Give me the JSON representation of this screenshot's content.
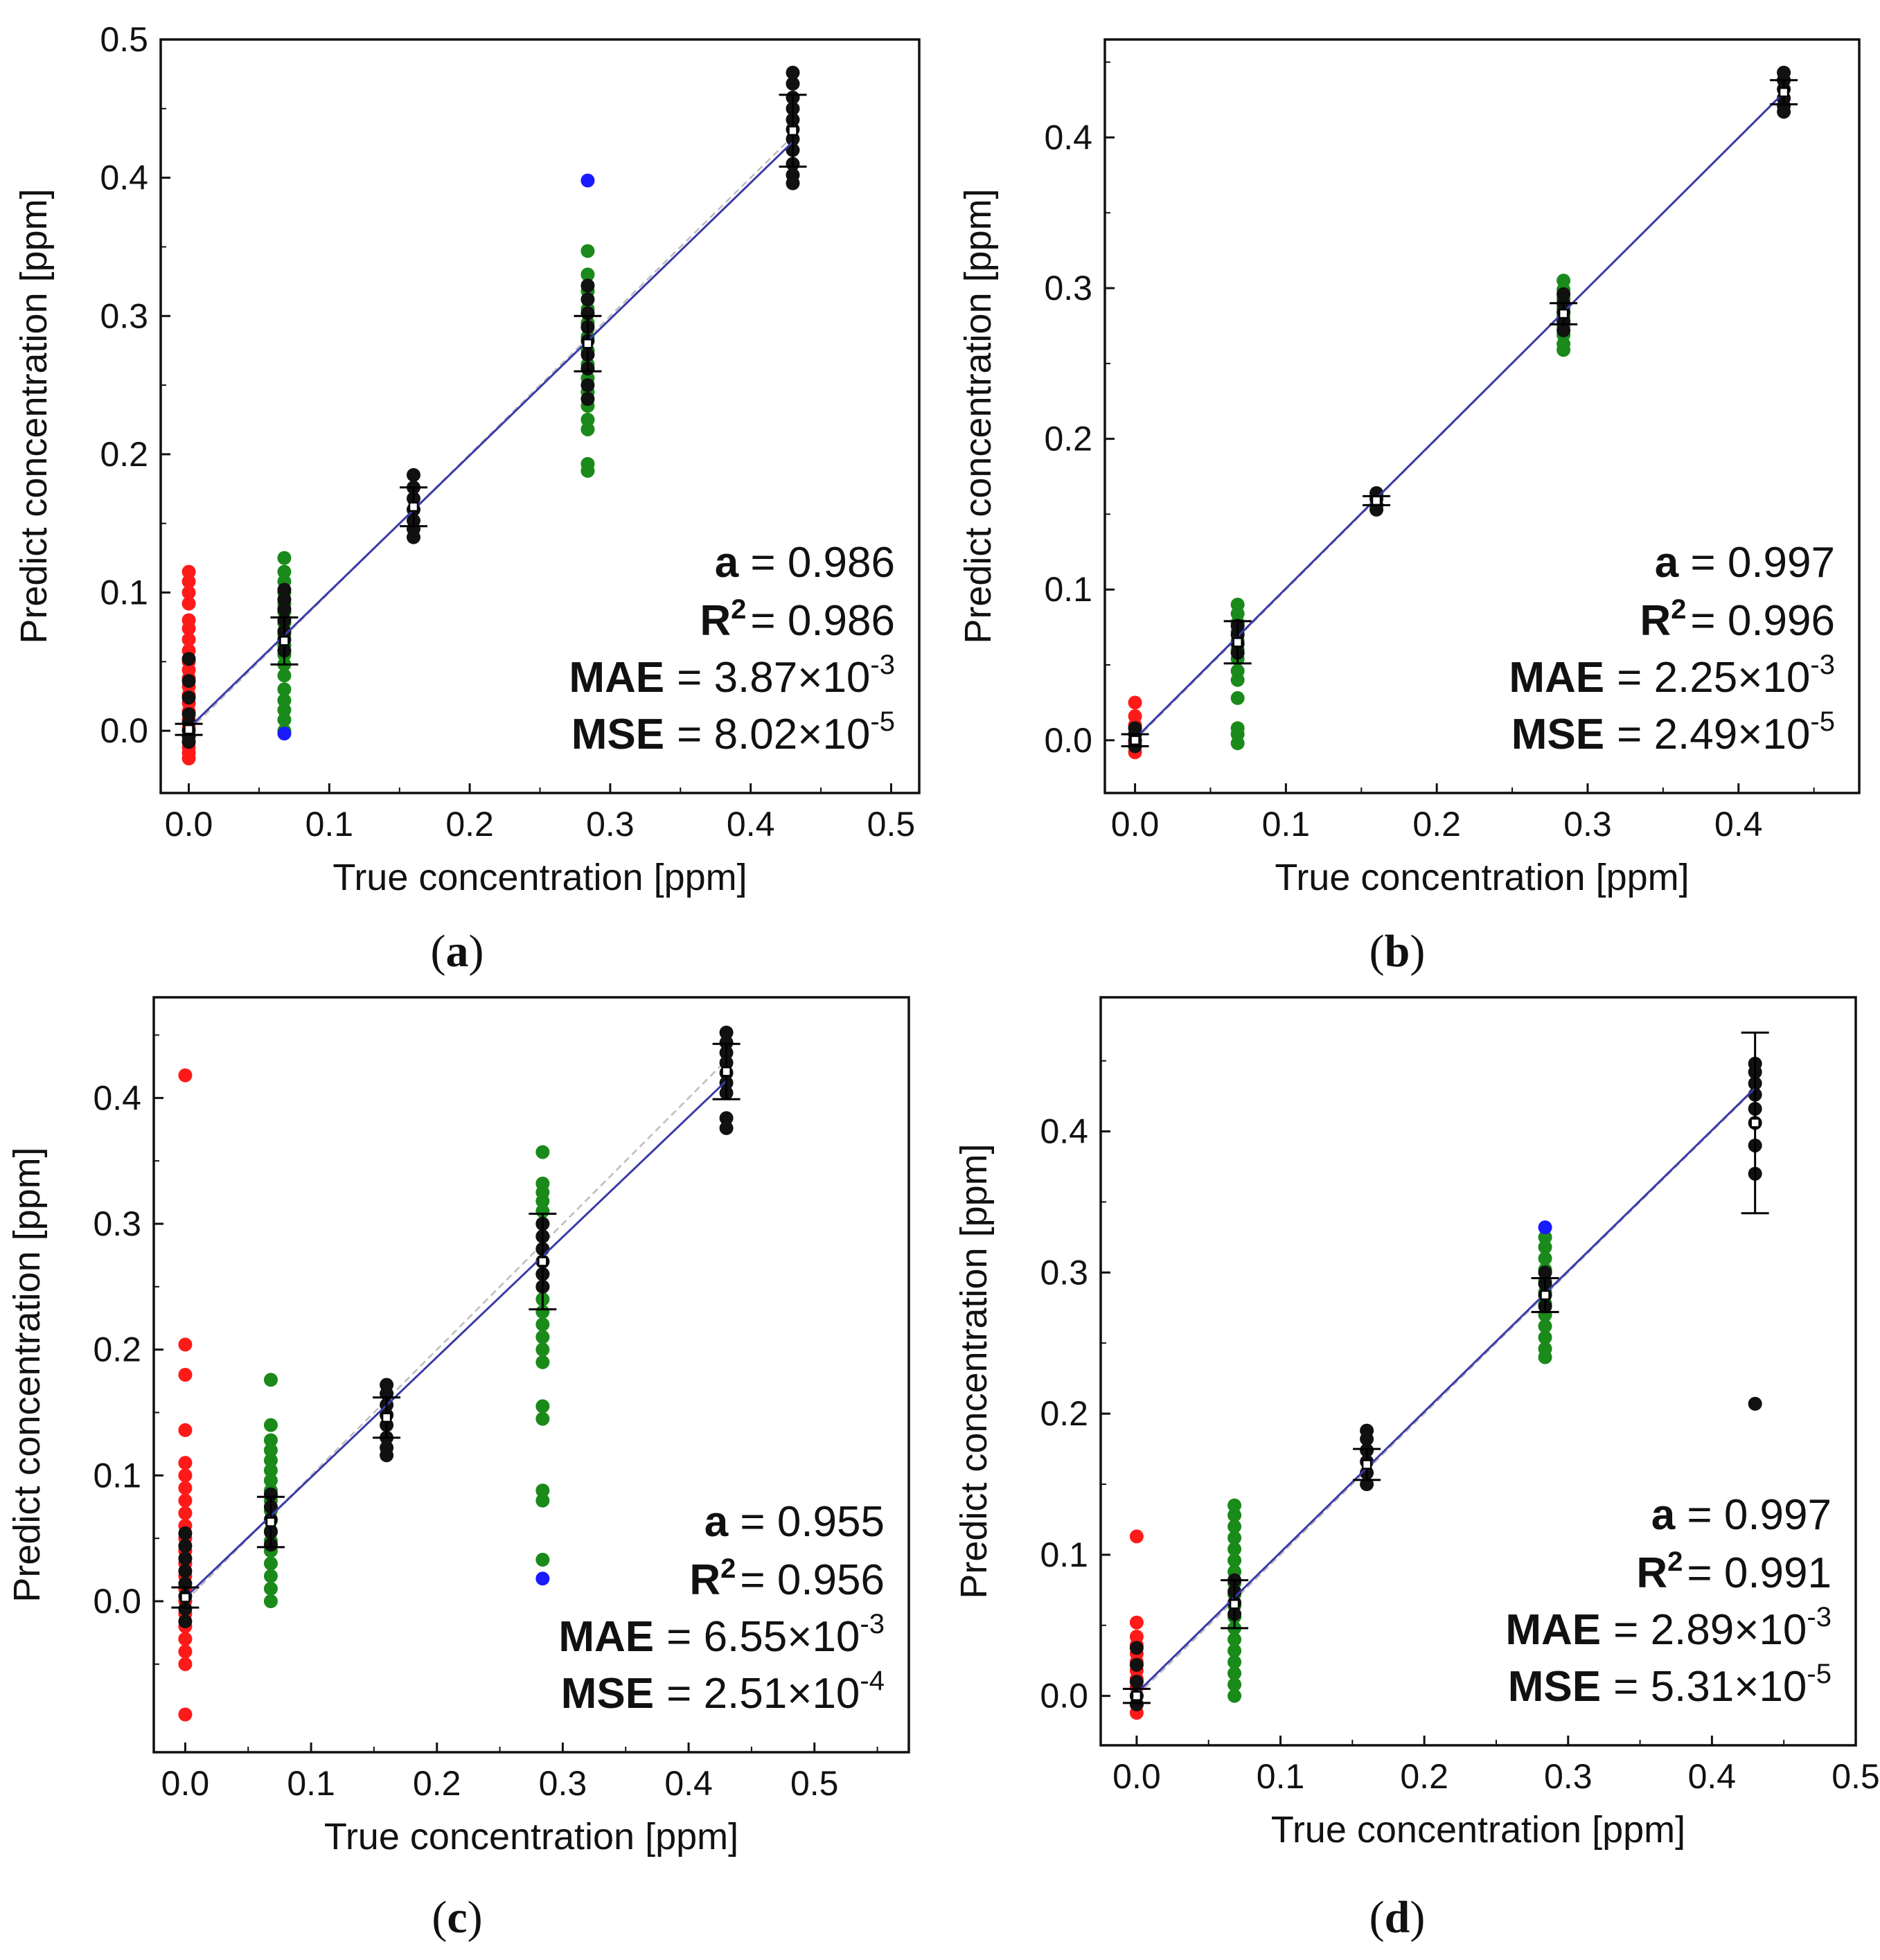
{
  "colors": {
    "low_outlier": "#ff1a1a",
    "mid_outlier": "#1a8a1a",
    "core": "#111111",
    "extreme": "#1a1aff",
    "fit_line": "#3a3aa8",
    "ideal_line": "#bdbdbd"
  },
  "chart_data": [
    {
      "panel": "a",
      "caption": "(a)",
      "type": "scatter",
      "xlabel": "True concentration [ppm]",
      "ylabel": "Predict concentration [ppm]",
      "xlim": [
        -0.02,
        0.52
      ],
      "ylim": [
        -0.045,
        0.5
      ],
      "xticks": [
        0.0,
        0.1,
        0.2,
        0.3,
        0.4,
        0.5
      ],
      "xtick_labels": [
        "0.0",
        "0.1",
        "0.2",
        "0.3",
        "0.4",
        "0.5"
      ],
      "yticks": [
        0.0,
        0.1,
        0.2,
        0.3,
        0.4,
        0.5
      ],
      "ytick_labels": [
        "0.0",
        "0.1",
        "0.2",
        "0.3",
        "0.4",
        "0.5"
      ],
      "fit": {
        "slope": 0.986,
        "intercept": 0.002
      },
      "groups": [
        {
          "x": 0.0,
          "mean": 0.001,
          "err": 0.004,
          "red": [
            0.115,
            0.108,
            0.1,
            0.092,
            0.08,
            0.074,
            0.066,
            0.058,
            0.05,
            0.044,
            0.038,
            0.032,
            0.026,
            0.02,
            0.014,
            0.008,
            0.002,
            -0.004,
            -0.008,
            -0.012,
            -0.016,
            -0.02
          ],
          "green": [],
          "blue": [],
          "black": [
            0.052,
            0.036,
            0.024,
            0.012,
            0.006,
            0.0,
            -0.004,
            -0.008
          ]
        },
        {
          "x": 0.068,
          "mean": 0.065,
          "err": 0.017,
          "red": [],
          "green": [
            0.125,
            0.115,
            0.108,
            0.1,
            0.092,
            0.086,
            0.078,
            0.07,
            0.062,
            0.055,
            0.048,
            0.04,
            0.03,
            0.022,
            0.015,
            0.008,
            0.0
          ],
          "blue": [
            -0.002
          ],
          "black": [
            0.102,
            0.095,
            0.088,
            0.08,
            0.072,
            0.066,
            0.058
          ]
        },
        {
          "x": 0.16,
          "mean": 0.162,
          "err": 0.014,
          "red": [],
          "green": [],
          "blue": [],
          "black": [
            0.185,
            0.176,
            0.168,
            0.16,
            0.152,
            0.146,
            0.14
          ]
        },
        {
          "x": 0.284,
          "mean": 0.28,
          "err": 0.02,
          "red": [],
          "green": [
            0.347,
            0.33,
            0.318,
            0.305,
            0.295,
            0.285,
            0.275,
            0.265,
            0.255,
            0.245,
            0.235,
            0.225,
            0.218,
            0.193,
            0.188
          ],
          "blue": [
            0.398
          ],
          "black": [
            0.322,
            0.312,
            0.302,
            0.292,
            0.282,
            0.272,
            0.262,
            0.25,
            0.24
          ]
        },
        {
          "x": 0.43,
          "mean": 0.434,
          "err": 0.026,
          "red": [],
          "green": [],
          "blue": [],
          "black": [
            0.476,
            0.468,
            0.458,
            0.45,
            0.442,
            0.435,
            0.428,
            0.42,
            0.41,
            0.402,
            0.396
          ]
        }
      ],
      "stats": {
        "a_key": "a",
        "a_val": " =  0.986",
        "r2_key": "R",
        "r2_sup": "2",
        "r2_val": "= 0.986",
        "mae_key": "MAE",
        "mae_val": "= 3.87×10",
        "mae_exp": "-3",
        "mse_key": "MSE",
        "mse_val": "= 8.02×10",
        "mse_exp": "-5"
      }
    },
    {
      "panel": "b",
      "caption": "(b)",
      "type": "scatter",
      "xlabel": "True concentration [ppm]",
      "ylabel": "Predict concentration [ppm]",
      "xlim": [
        -0.02,
        0.48
      ],
      "ylim": [
        -0.035,
        0.465
      ],
      "xticks": [
        0.0,
        0.1,
        0.2,
        0.3,
        0.4
      ],
      "xtick_labels": [
        "0.0",
        "0.1",
        "0.2",
        "0.3",
        "0.4"
      ],
      "yticks": [
        0.0,
        0.1,
        0.2,
        0.3,
        0.4
      ],
      "ytick_labels": [
        "0.0",
        "0.1",
        "0.2",
        "0.3",
        "0.4"
      ],
      "fit": {
        "slope": 0.997,
        "intercept": 0.001
      },
      "groups": [
        {
          "x": 0.0,
          "mean": 0.0,
          "err": 0.004,
          "red": [
            0.025,
            0.016,
            0.01,
            0.004,
            -0.002,
            -0.008
          ],
          "green": [],
          "blue": [],
          "black": [
            0.008,
            0.004,
            0.0,
            -0.004
          ]
        },
        {
          "x": 0.068,
          "mean": 0.065,
          "err": 0.014,
          "red": [],
          "green": [
            0.09,
            0.084,
            0.078,
            0.072,
            0.066,
            0.06,
            0.054,
            0.046,
            0.04,
            0.028,
            0.008,
            0.004,
            -0.002
          ],
          "blue": [],
          "black": [
            0.076,
            0.07,
            0.064,
            0.058
          ]
        },
        {
          "x": 0.16,
          "mean": 0.159,
          "err": 0.003,
          "red": [],
          "green": [],
          "blue": [],
          "black": [
            0.164,
            0.16,
            0.156,
            0.153
          ]
        },
        {
          "x": 0.284,
          "mean": 0.283,
          "err": 0.007,
          "red": [],
          "green": [
            0.305,
            0.299,
            0.293,
            0.287,
            0.281,
            0.275,
            0.269,
            0.263,
            0.259
          ],
          "blue": [],
          "black": [
            0.296,
            0.29,
            0.284,
            0.278,
            0.272
          ]
        },
        {
          "x": 0.43,
          "mean": 0.43,
          "err": 0.008,
          "red": [],
          "green": [],
          "blue": [],
          "black": [
            0.443,
            0.438,
            0.432,
            0.426,
            0.421,
            0.417
          ]
        }
      ],
      "stats": {
        "a_key": "a",
        "a_val": " = 0.997",
        "r2_key": "R",
        "r2_sup": "2",
        "r2_val": "= 0.996",
        "mae_key": "MAE",
        "mae_val": "= 2.25×10",
        "mae_exp": "-3",
        "mse_key": "MSE",
        "mse_val": "= 2.49×10",
        "mse_exp": "-5"
      }
    },
    {
      "panel": "c",
      "caption": "(c)",
      "type": "scatter",
      "xlabel": "True concentration [ppm]",
      "ylabel": "Predict concentration [ppm]",
      "xlim": [
        -0.025,
        0.575
      ],
      "ylim": [
        -0.12,
        0.48
      ],
      "xticks": [
        0.0,
        0.1,
        0.2,
        0.3,
        0.4,
        0.5
      ],
      "xtick_labels": [
        "0.0",
        "0.1",
        "0.2",
        "0.3",
        "0.4",
        "0.5"
      ],
      "yticks": [
        0.0,
        0.1,
        0.2,
        0.3,
        0.4
      ],
      "ytick_labels": [
        "0.0",
        "0.1",
        "0.2",
        "0.3",
        "0.4"
      ],
      "fit": {
        "slope": 0.955,
        "intercept": 0.003
      },
      "groups": [
        {
          "x": 0.0,
          "mean": 0.003,
          "err": 0.008,
          "red": [
            0.418,
            0.204,
            0.18,
            0.136,
            0.11,
            0.1,
            0.09,
            0.08,
            0.07,
            0.06,
            0.05,
            0.04,
            0.03,
            0.02,
            0.01,
            0.0,
            -0.01,
            -0.02,
            -0.03,
            -0.04,
            -0.05,
            -0.09
          ],
          "green": [],
          "blue": [],
          "black": [
            0.054,
            0.044,
            0.034,
            0.024,
            0.014,
            0.004,
            -0.006,
            -0.016
          ]
        },
        {
          "x": 0.068,
          "mean": 0.063,
          "err": 0.02,
          "red": [],
          "green": [
            0.176,
            0.14,
            0.128,
            0.12,
            0.112,
            0.104,
            0.096,
            0.088,
            0.08,
            0.072,
            0.064,
            0.056,
            0.048,
            0.04,
            0.03,
            0.02,
            0.01,
            0.0
          ],
          "blue": [],
          "black": [
            0.085,
            0.075,
            0.065,
            0.055,
            0.045
          ]
        },
        {
          "x": 0.16,
          "mean": 0.146,
          "err": 0.016,
          "red": [],
          "green": [],
          "blue": [],
          "black": [
            0.172,
            0.165,
            0.156,
            0.148,
            0.14,
            0.13,
            0.122,
            0.116
          ]
        },
        {
          "x": 0.284,
          "mean": 0.27,
          "err": 0.038,
          "red": [],
          "green": [
            0.357,
            0.332,
            0.325,
            0.318,
            0.31,
            0.3,
            0.29,
            0.28,
            0.27,
            0.26,
            0.25,
            0.24,
            0.23,
            0.22,
            0.21,
            0.2,
            0.19,
            0.155,
            0.145,
            0.088,
            0.08,
            0.033
          ],
          "blue": [
            0.018
          ],
          "black": [
            0.3,
            0.29,
            0.28,
            0.27,
            0.26,
            0.25
          ]
        },
        {
          "x": 0.43,
          "mean": 0.421,
          "err": 0.022,
          "red": [],
          "green": [],
          "blue": [],
          "black": [
            0.452,
            0.444,
            0.436,
            0.428,
            0.42,
            0.412,
            0.404,
            0.384,
            0.376
          ]
        }
      ],
      "stats": {
        "a_key": "a",
        "a_val": " =  0.955",
        "r2_key": "R",
        "r2_sup": "2",
        "r2_val": "= 0.956",
        "mae_key": "MAE",
        "mae_val": "= 6.55×10",
        "mae_exp": "-3",
        "mse_key": "MSE",
        "mse_val": "= 2.51×10",
        "mse_exp": "-4"
      }
    },
    {
      "panel": "d",
      "caption": "(d)",
      "type": "scatter",
      "xlabel": "True concentration [ppm]",
      "ylabel": "Predict concentration [ppm]",
      "xlim": [
        -0.025,
        0.5
      ],
      "ylim": [
        -0.035,
        0.495
      ],
      "xticks": [
        0.0,
        0.1,
        0.2,
        0.3,
        0.4,
        0.5
      ],
      "xtick_labels": [
        "0.0",
        "0.1",
        "0.2",
        "0.3",
        "0.4",
        "0.5"
      ],
      "yticks": [
        0.0,
        0.1,
        0.2,
        0.3,
        0.4
      ],
      "ytick_labels": [
        "0.0",
        "0.1",
        "0.2",
        "0.3",
        "0.4"
      ],
      "fit": {
        "slope": 0.997,
        "intercept": 0.002
      },
      "groups": [
        {
          "x": 0.0,
          "mean": 0.0,
          "err": 0.005,
          "red": [
            0.113,
            0.052,
            0.042,
            0.036,
            0.03,
            0.024,
            0.018,
            0.012,
            0.006,
            0.0,
            -0.006,
            -0.012
          ],
          "green": [],
          "blue": [],
          "black": [
            0.034,
            0.022,
            0.01,
            0.0,
            -0.006
          ]
        },
        {
          "x": 0.068,
          "mean": 0.065,
          "err": 0.017,
          "red": [],
          "green": [
            0.135,
            0.128,
            0.12,
            0.112,
            0.104,
            0.096,
            0.088,
            0.08,
            0.072,
            0.064,
            0.056,
            0.048,
            0.04,
            0.032,
            0.024,
            0.016,
            0.008,
            0.0
          ],
          "blue": [],
          "black": [
            0.082,
            0.074,
            0.066,
            0.058
          ]
        },
        {
          "x": 0.16,
          "mean": 0.164,
          "err": 0.011,
          "red": [],
          "green": [],
          "blue": [],
          "black": [
            0.188,
            0.182,
            0.174,
            0.166,
            0.158,
            0.15
          ]
        },
        {
          "x": 0.284,
          "mean": 0.284,
          "err": 0.012,
          "red": [],
          "green": [
            0.325,
            0.318,
            0.31,
            0.302,
            0.294,
            0.286,
            0.278,
            0.27,
            0.262,
            0.254,
            0.246,
            0.24
          ],
          "blue": [
            0.332
          ],
          "black": [
            0.3,
            0.292,
            0.284,
            0.276
          ]
        },
        {
          "x": 0.43,
          "mean": 0.406,
          "err": 0.064,
          "red": [],
          "green": [],
          "blue": [],
          "black": [
            0.448,
            0.442,
            0.434,
            0.426,
            0.416,
            0.406,
            0.39,
            0.37,
            0.207
          ]
        }
      ],
      "stats": {
        "a_key": "a",
        "a_val": " = 0.997",
        "r2_key": "R",
        "r2_sup": "2",
        "r2_val": "= 0.991",
        "mae_key": "MAE",
        "mae_val": "= 2.89×10",
        "mae_exp": "-3",
        "mse_key": "MSE",
        "mse_val": "= 5.31×10",
        "mse_exp": "-5"
      }
    }
  ]
}
